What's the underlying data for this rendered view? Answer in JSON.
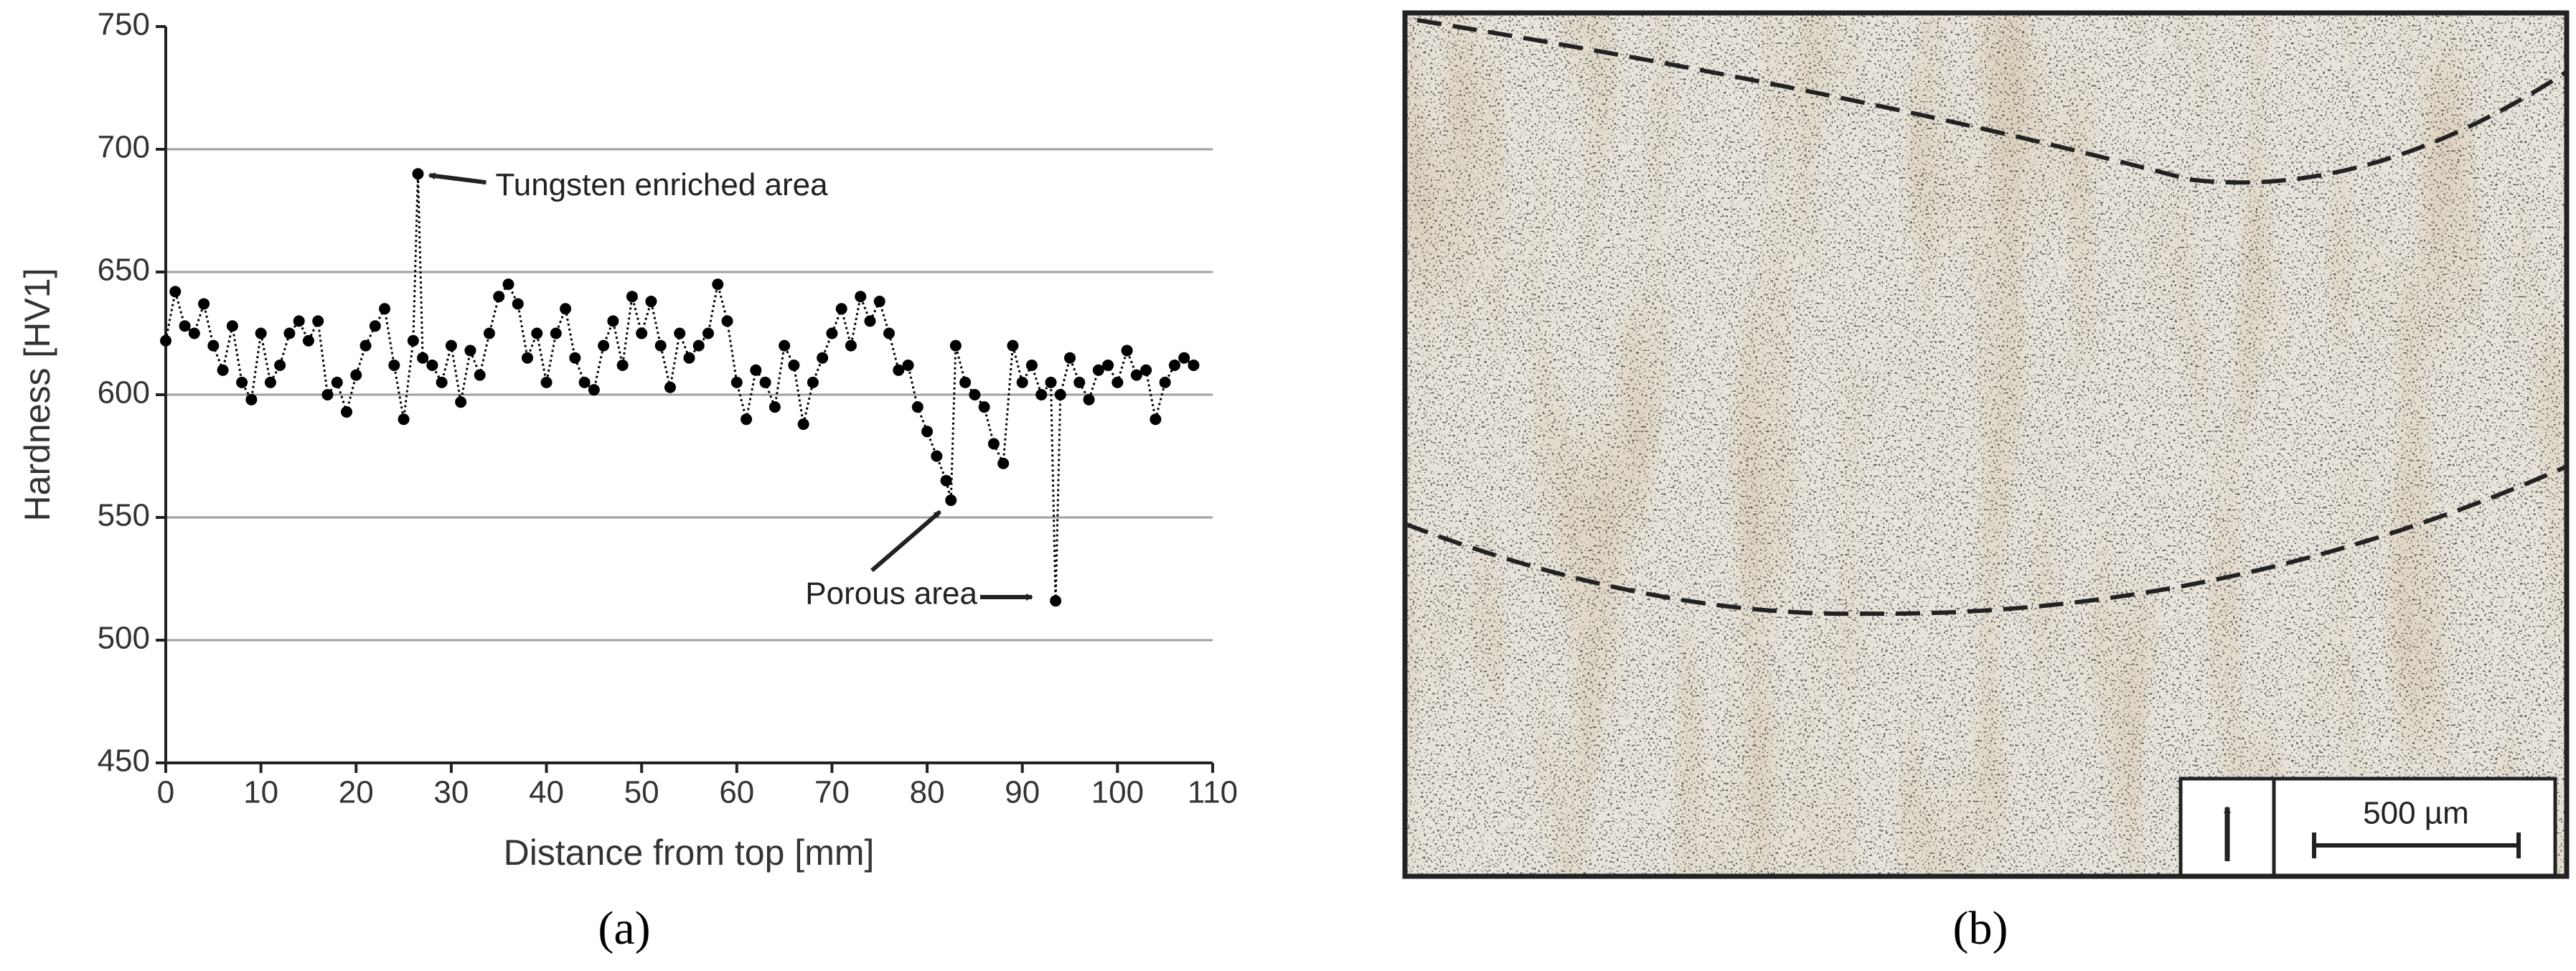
{
  "chart_data": {
    "type": "line",
    "xlabel": "Distance from top [mm]",
    "ylabel": "Hardness [HV1]",
    "x": [
      0,
      1,
      2,
      3,
      4,
      5,
      6,
      7,
      8,
      9,
      10,
      11,
      12,
      13,
      14,
      15,
      16,
      17,
      18,
      19,
      20,
      21,
      22,
      23,
      24,
      25,
      26,
      26.5,
      27,
      28,
      29,
      30,
      31,
      32,
      33,
      34,
      35,
      36,
      37,
      38,
      39,
      40,
      41,
      42,
      43,
      44,
      45,
      46,
      47,
      48,
      49,
      50,
      51,
      52,
      53,
      54,
      55,
      56,
      57,
      58,
      59,
      60,
      61,
      62,
      63,
      64,
      65,
      66,
      67,
      68,
      69,
      70,
      71,
      72,
      73,
      74,
      75,
      76,
      77,
      78,
      79,
      80,
      81,
      82,
      82.5,
      83,
      84,
      85,
      86,
      87,
      88,
      89,
      90,
      91,
      92,
      93,
      93.5,
      94,
      95,
      96,
      97,
      98,
      99,
      100,
      101,
      102,
      103,
      104,
      105,
      106,
      107,
      108
    ],
    "series": [
      {
        "color": "#000000",
        "values": [
          622,
          642,
          628,
          625,
          637,
          620,
          610,
          628,
          605,
          598,
          625,
          605,
          612,
          625,
          630,
          622,
          630,
          600,
          605,
          593,
          608,
          620,
          628,
          635,
          612,
          590,
          622,
          690,
          615,
          612,
          605,
          620,
          597,
          618,
          608,
          625,
          640,
          645,
          637,
          615,
          625,
          605,
          625,
          635,
          615,
          605,
          602,
          620,
          630,
          612,
          640,
          625,
          638,
          620,
          603,
          625,
          615,
          620,
          625,
          645,
          630,
          605,
          590,
          610,
          605,
          595,
          620,
          612,
          588,
          605,
          615,
          625,
          635,
          620,
          640,
          630,
          638,
          625,
          610,
          612,
          595,
          585,
          575,
          565,
          557,
          620,
          605,
          600,
          595,
          580,
          572,
          620,
          605,
          612,
          600,
          605,
          516,
          600,
          615,
          605,
          598,
          610,
          612,
          605,
          618,
          608,
          610,
          590,
          605,
          612,
          615,
          612
        ]
      }
    ],
    "xlim": [
      0,
      110
    ],
    "xticks": [
      0,
      10,
      20,
      30,
      40,
      50,
      60,
      70,
      80,
      90,
      100,
      110
    ],
    "ylim": [
      450,
      750
    ],
    "yticks": [
      450,
      500,
      550,
      600,
      650,
      700,
      750
    ],
    "grid": true,
    "annotations": [
      "Tungsten enriched area",
      "Porous area"
    ]
  },
  "panel_labels": [
    "(a)",
    "(b)"
  ],
  "micrograph": {
    "scale_label": "500 µm"
  }
}
